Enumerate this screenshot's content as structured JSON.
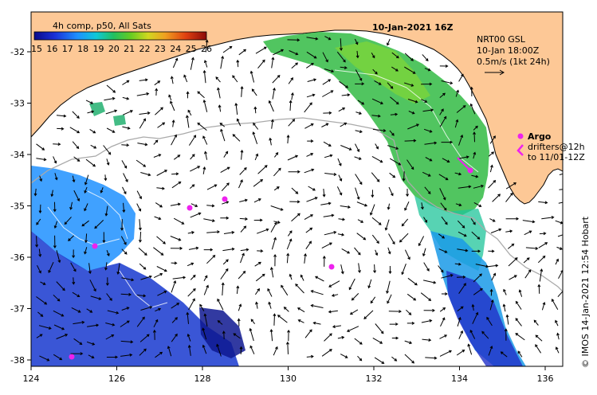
{
  "title": "10-Jan-2021 16Z",
  "colorbar": {
    "label": "4h comp, p50, All Sats",
    "ticks": [
      "15",
      "16",
      "17",
      "18",
      "19",
      "20",
      "21",
      "22",
      "23",
      "24",
      "25",
      "26"
    ]
  },
  "current_info": {
    "line1": "NRT00 GSL",
    "line2": "10-Jan 18:00Z",
    "line3": "0.5m/s (1kt 24h)"
  },
  "argo": {
    "label": "Argo",
    "drifters_line1": "drifters@12h",
    "drifters_line2": "to 11/01-12Z"
  },
  "credit": "© IMOS 14-Jan-2021 12:54 Hobart",
  "axes": {
    "x_ticks": [
      "124",
      "126",
      "128",
      "130",
      "132",
      "134",
      "136"
    ],
    "y_ticks": [
      "-32",
      "-33",
      "-34",
      "-35",
      "-36",
      "-37",
      "-38"
    ]
  },
  "colors": {
    "land": "#fdc896",
    "warm_sst": "#33bb44",
    "cool_sst": "#1a66e0",
    "argo": "#ee22ee"
  }
}
